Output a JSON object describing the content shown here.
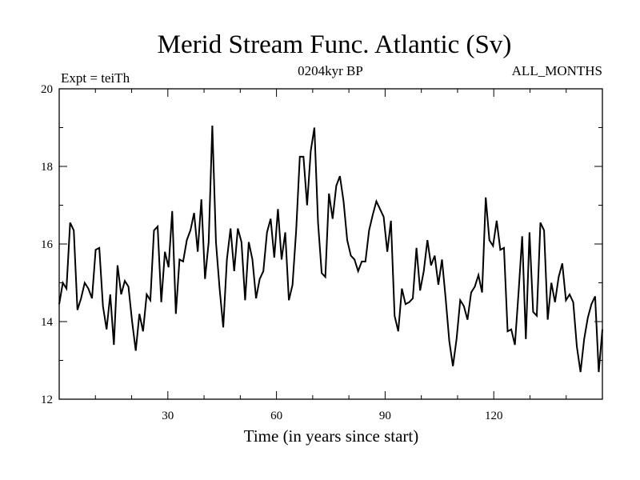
{
  "chart_data": {
    "type": "line",
    "title": "Merid Stream Func. Atlantic (Sv)",
    "subtitle_left": "Expt = teiTh",
    "subtitle_center": "0204kyr BP",
    "subtitle_right": "ALL_MONTHS",
    "xlabel": "Time (in years since start)",
    "ylabel": "",
    "xlim": [
      0,
      150
    ],
    "ylim": [
      12,
      20
    ],
    "x_ticks": [
      30,
      60,
      90,
      120
    ],
    "y_ticks": [
      12,
      14,
      16,
      18,
      20
    ],
    "x_tick_labels": [
      "30",
      "60",
      "90",
      "120"
    ],
    "y_tick_labels": [
      "12",
      "14",
      "16",
      "18",
      "20"
    ],
    "x_minor_ticks": [
      10,
      20,
      40,
      50,
      70,
      80,
      100,
      110,
      130,
      140
    ],
    "y_minor_ticks": [
      13,
      15,
      17,
      19
    ],
    "series": [
      {
        "name": "Merid Stream Func.",
        "color": "#000000",
        "values": [
          14.45,
          15.0,
          14.85,
          16.55,
          16.35,
          14.3,
          14.6,
          15.0,
          14.85,
          14.6,
          15.85,
          15.9,
          14.4,
          13.8,
          14.7,
          13.4,
          15.45,
          14.7,
          15.05,
          14.9,
          14.0,
          13.25,
          14.2,
          13.75,
          14.7,
          14.55,
          16.35,
          16.45,
          14.5,
          15.8,
          15.4,
          16.85,
          14.2,
          15.6,
          15.55,
          16.1,
          16.35,
          16.8,
          15.8,
          17.15,
          15.1,
          16.05,
          19.05,
          16.05,
          14.85,
          13.85,
          15.6,
          16.4,
          15.3,
          16.4,
          16.05,
          14.55,
          16.05,
          15.6,
          14.6,
          15.1,
          15.3,
          16.3,
          16.65,
          15.65,
          16.9,
          15.6,
          16.3,
          14.55,
          14.95,
          16.35,
          18.25,
          18.25,
          17.0,
          18.4,
          19.0,
          16.55,
          15.25,
          15.15,
          17.3,
          16.65,
          17.5,
          17.75,
          17.1,
          16.1,
          15.7,
          15.6,
          15.3,
          15.55,
          15.55,
          16.35,
          16.75,
          17.1,
          16.9,
          16.7,
          15.8,
          16.6,
          14.15,
          13.75,
          14.85,
          14.45,
          14.5,
          14.6,
          15.9,
          14.8,
          15.3,
          16.1,
          15.45,
          15.7,
          14.95,
          15.6,
          14.6,
          13.5,
          12.85,
          13.55,
          14.55,
          14.4,
          14.05,
          14.75,
          14.9,
          15.2,
          14.75,
          17.2,
          16.1,
          15.95,
          16.6,
          15.85,
          15.9,
          13.75,
          13.8,
          13.4,
          14.75,
          16.2,
          13.55,
          16.3,
          14.25,
          14.15,
          16.55,
          16.35,
          14.05,
          15.0,
          14.5,
          15.15,
          15.5,
          14.55,
          14.7,
          14.5,
          13.35,
          12.7,
          13.55,
          14.1,
          14.45,
          14.65,
          12.7,
          13.8
        ]
      }
    ]
  }
}
